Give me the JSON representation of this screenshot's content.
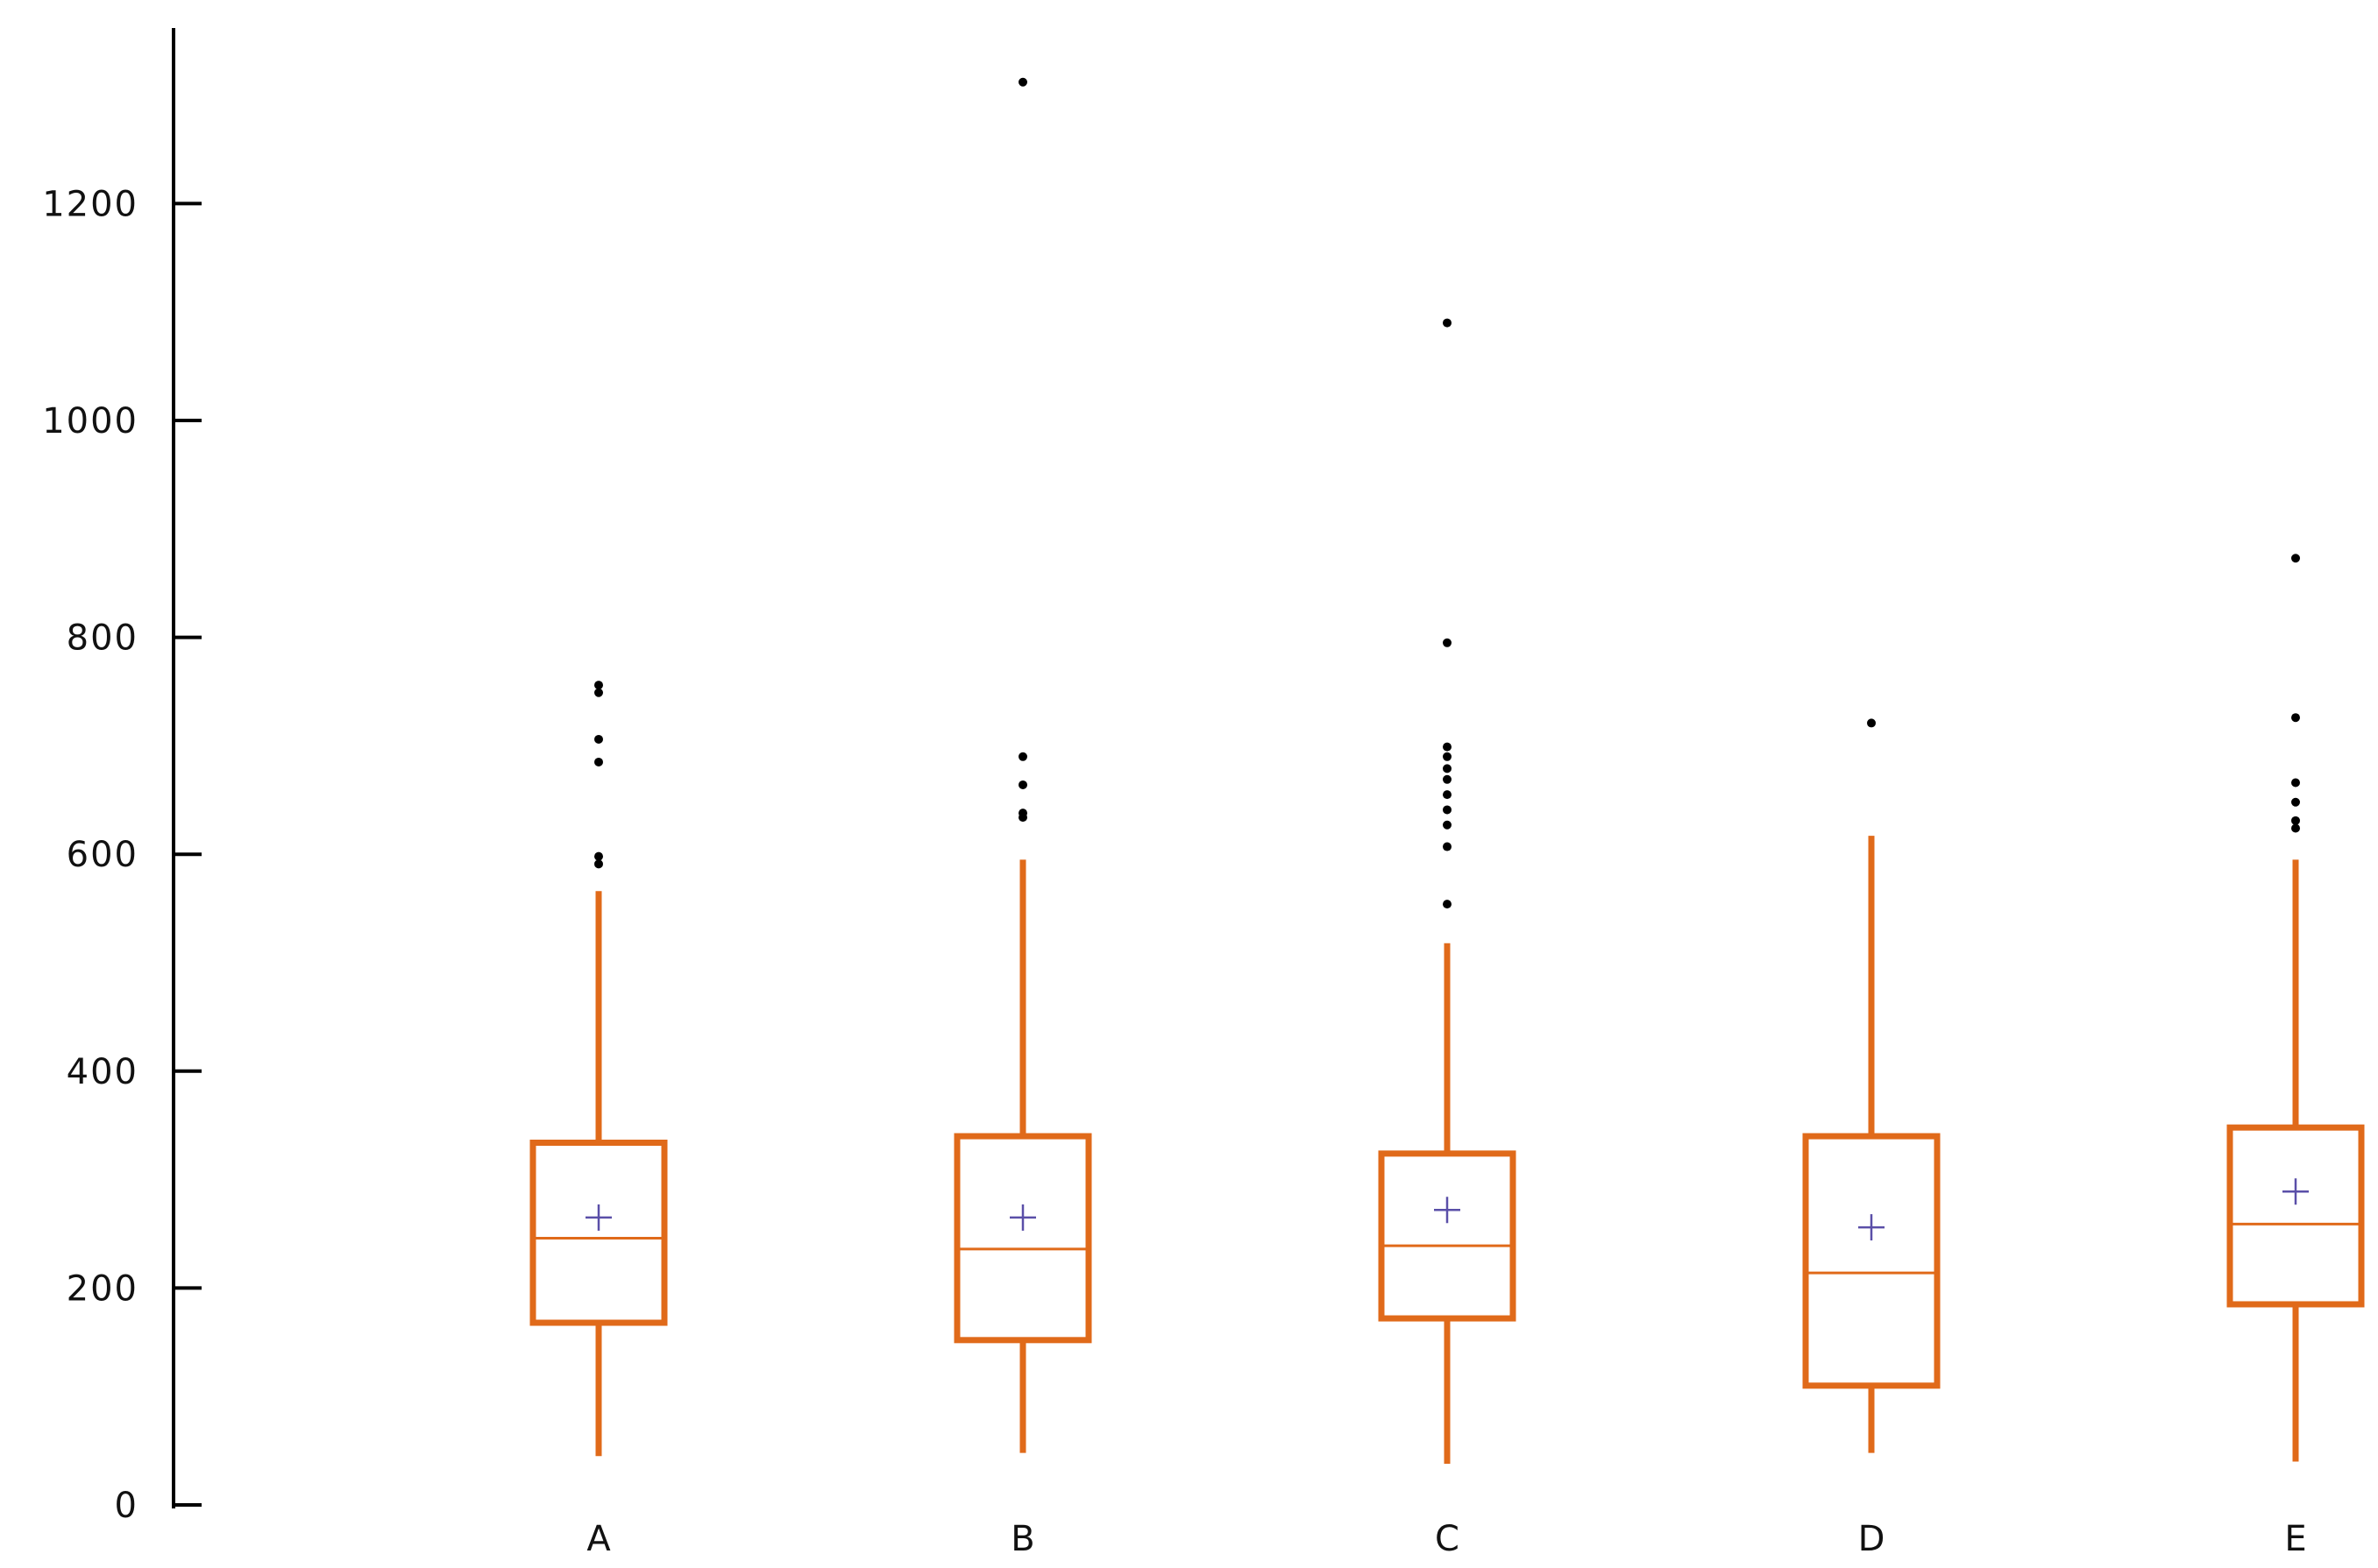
{
  "chart_data": {
    "type": "box",
    "title": "",
    "xlabel": "",
    "ylabel": "",
    "ylim": [
      0,
      1370
    ],
    "yticks": [
      0,
      200,
      400,
      600,
      800,
      1000,
      1200
    ],
    "ytick_labels": [
      "0",
      "200",
      "400",
      "600",
      "800",
      "1000",
      "1200"
    ],
    "grid": false,
    "legend": "none",
    "colors": {
      "box": "#e06a1a",
      "mean_marker": "#5a4fa8",
      "outlier": "#000000",
      "axis": "#000000"
    },
    "categories": [
      "A",
      "B",
      "C",
      "D",
      "E"
    ],
    "boxes": [
      {
        "category": "A",
        "whisker_low": 45,
        "q1": 168,
        "median": 246,
        "q3": 334,
        "whisker_high": 566,
        "mean": 265,
        "outliers": [
          591,
          598,
          685,
          706,
          749,
          756
        ]
      },
      {
        "category": "B",
        "whisker_low": 48,
        "q1": 152,
        "median": 236,
        "q3": 340,
        "whisker_high": 595,
        "mean": 265,
        "outliers": [
          634,
          638,
          664,
          690,
          1312
        ]
      },
      {
        "category": "C",
        "whisker_low": 38,
        "q1": 172,
        "median": 239,
        "q3": 324,
        "whisker_high": 518,
        "mean": 272,
        "outliers": [
          554,
          607,
          627,
          641,
          655,
          669,
          679,
          690,
          699,
          795,
          1090
        ]
      },
      {
        "category": "D",
        "whisker_low": 48,
        "q1": 110,
        "median": 214,
        "q3": 340,
        "whisker_high": 617,
        "mean": 256,
        "outliers": [
          721
        ]
      },
      {
        "category": "E",
        "whisker_low": 40,
        "q1": 185,
        "median": 259,
        "q3": 348,
        "whisker_high": 595,
        "mean": 289,
        "outliers": [
          624,
          631,
          648,
          666,
          726,
          873
        ]
      }
    ]
  }
}
